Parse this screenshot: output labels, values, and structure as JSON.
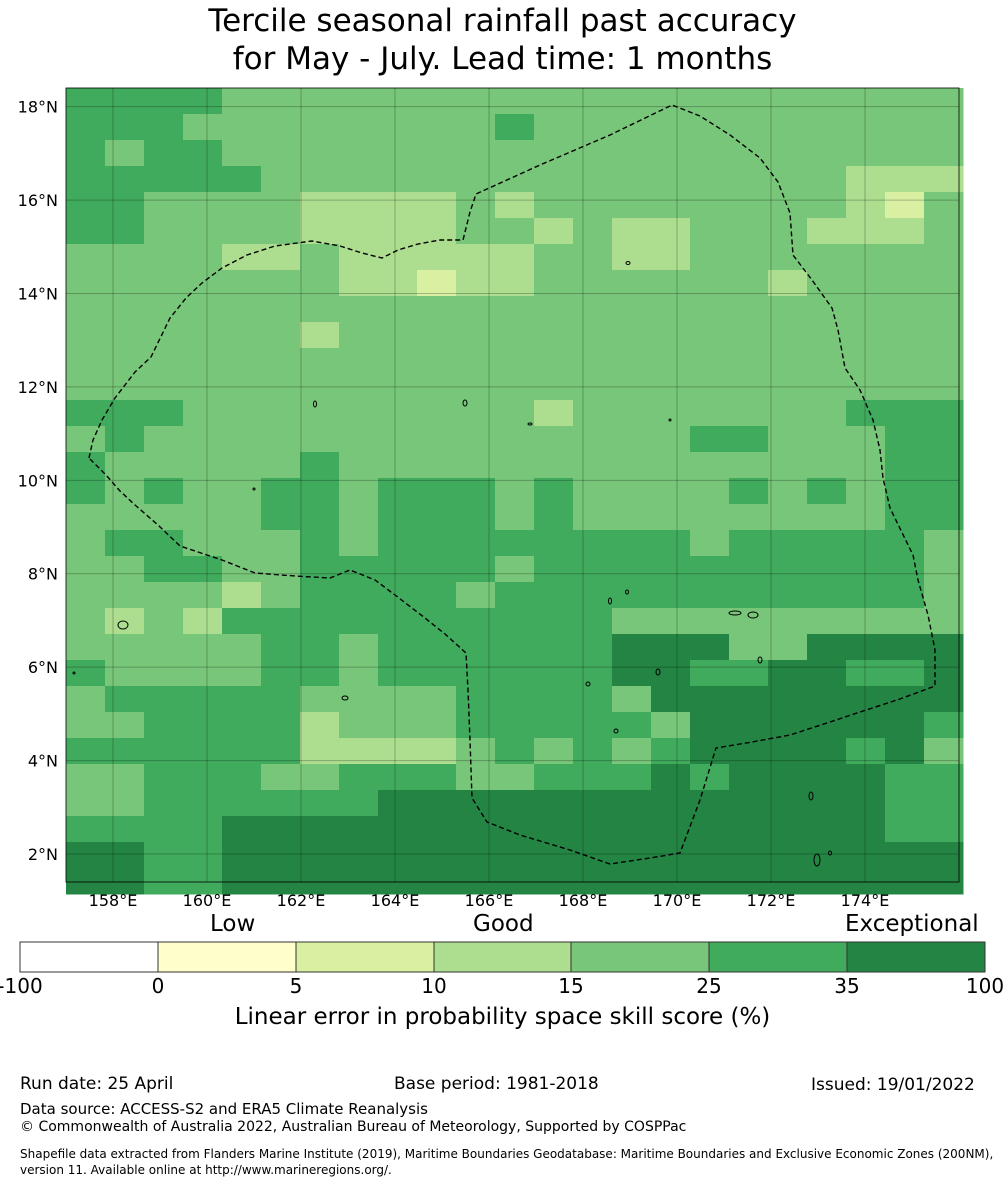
{
  "title": {
    "line1": "Tercile seasonal rainfall past accuracy",
    "line2": "for May - July. Lead time: 1 months"
  },
  "map": {
    "lat_ticks": [
      "18°N",
      "16°N",
      "14°N",
      "12°N",
      "10°N",
      "8°N",
      "6°N",
      "4°N",
      "2°N"
    ],
    "lon_ticks": [
      "158°E",
      "160°E",
      "162°E",
      "164°E",
      "166°E",
      "168°E",
      "170°E",
      "172°E",
      "174°E"
    ],
    "lat_range": [
      1.4,
      18.4
    ],
    "lon_range": [
      157.0,
      176.0
    ],
    "grid_lines": true,
    "boundary": "dashed exclusive economic zone outline"
  },
  "legend": {
    "category_low": "Low",
    "category_good": "Good",
    "category_exceptional": "Exceptional",
    "ticks": [
      "-100",
      "0",
      "5",
      "10",
      "15",
      "25",
      "35",
      "100"
    ],
    "colors": [
      "#ffffff",
      "#ffffcc",
      "#d9f0a3",
      "#addd8e",
      "#78c679",
      "#41ab5d",
      "#238443"
    ],
    "xlabel": "Linear error in probability space skill score (%)"
  },
  "footer": {
    "run_date": "Run date: 25 April",
    "base_period": "Base period: 1981-2018",
    "issued": "Issued: 19/01/2022",
    "data_source": "Data source: ACCESS-S2 and ERA5 Climate Reanalysis",
    "copyright": "© Commonwealth of Australia 2022, Australian Bureau of Meteorology, Supported by COSPPac",
    "shapefile_line1": "Shapefile data extracted from Flanders Marine Institute (2019), Maritime Boundaries Geodatabase: Maritime Boundaries and Exclusive Economic Zones (200NM),",
    "shapefile_line2": "version 11. Available online at http://www.marineregions.org/."
  }
}
